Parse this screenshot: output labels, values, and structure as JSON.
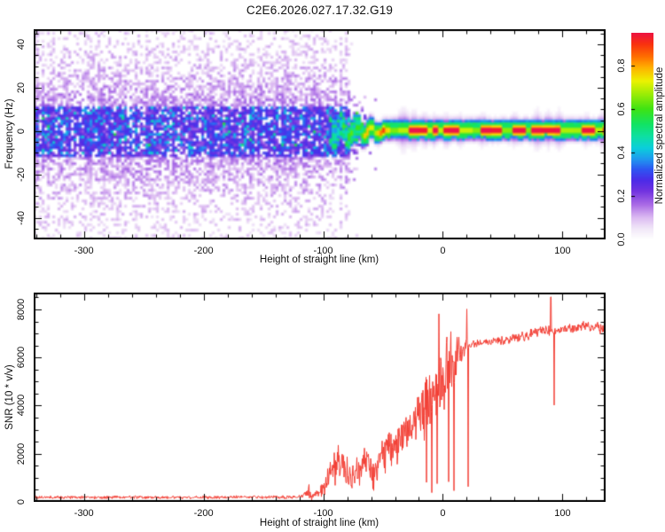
{
  "figure": {
    "background": "#ffffff",
    "frame_color": "#000000"
  },
  "chart_data": [
    {
      "type": "heatmap",
      "title": "C2E6.2026.027.17.32.G19",
      "xlabel": "Height of straight line (km)",
      "ylabel": "Frequency (Hz)",
      "xlim": [
        -342,
        136
      ],
      "ylim": [
        -50,
        47
      ],
      "xticks": {
        "labels": [
          "-300",
          "-200",
          "-100",
          "0",
          "100"
        ],
        "values": [
          -300,
          -200,
          -100,
          0,
          100
        ],
        "minor_step": 20
      },
      "yticks": {
        "labels": [
          "-40",
          "-20",
          "0",
          "20",
          "40"
        ],
        "values": [
          -40,
          -20,
          0,
          20,
          40
        ],
        "minor_step": 5
      },
      "colorbar": {
        "label": "Normalized spectral amplitude",
        "ticks": {
          "labels": [
            "0.0",
            "0.2",
            "0.4",
            "0.6",
            "0.8"
          ],
          "values": [
            0.0,
            0.2,
            0.4,
            0.6,
            0.8
          ]
        },
        "range": [
          0,
          0.95
        ]
      },
      "colormap_stops": [
        [
          0.0,
          "#ffffff"
        ],
        [
          0.05,
          "#f1e6f8"
        ],
        [
          0.1,
          "#dcbaf2"
        ],
        [
          0.16,
          "#a96ae6"
        ],
        [
          0.22,
          "#7334e0"
        ],
        [
          0.27,
          "#4d2be8"
        ],
        [
          0.32,
          "#2f55f2"
        ],
        [
          0.37,
          "#1f9bef"
        ],
        [
          0.42,
          "#0bcfdc"
        ],
        [
          0.47,
          "#0edfa6"
        ],
        [
          0.53,
          "#12e464"
        ],
        [
          0.6,
          "#3fe314"
        ],
        [
          0.67,
          "#9ded06"
        ],
        [
          0.73,
          "#edf202"
        ],
        [
          0.79,
          "#ffb300"
        ],
        [
          0.84,
          "#ff7100"
        ],
        [
          0.9,
          "#f93110"
        ],
        [
          0.95,
          "#ee1441"
        ],
        [
          1.0,
          "#e8135f"
        ]
      ],
      "features": {
        "broadband_noise": {
          "x_full_until": -88,
          "x_mid_until": -74,
          "x_end": -52,
          "mid_density": 0.45,
          "freq_sigma": 30,
          "center_band_halfwidth_hz": 12,
          "description": "speckled purple noise across ±50 Hz, densest (blue/violet with cyan specks) within ±12 Hz of 0; fades out between -88 and -52 km"
        },
        "signal": {
          "x_start": -101,
          "steady_from": -48,
          "center_freq_hz": 0.5,
          "wiggle_max_hz": 4.3,
          "red_dash_fraction": 0.6,
          "trace": [
            [
              -100,
              -2,
              0.35
            ],
            [
              -90,
              -4,
              0.5
            ],
            [
              -80,
              3,
              0.55
            ],
            [
              -70,
              -2,
              0.62
            ],
            [
              -60,
              3,
              0.7
            ],
            [
              -52,
              1,
              0.8
            ],
            [
              -45,
              0.5,
              0.95
            ],
            [
              0,
              0.5,
              0.95
            ],
            [
              136,
              0.5,
              0.95
            ]
          ],
          "description": "narrow line at ~0 Hz: wiggling green/cyan blobs from -100 to -48 km, then steady band with red/crimson dashed core, yellow-green edges, cyan rim and purple halo to the right edge"
        },
        "halo_bumps": [
          {
            "x": -33,
            "a": 2.2,
            "s": 4
          },
          {
            "x": -24,
            "a": 1.6,
            "s": 3
          },
          {
            "x": -15,
            "a": 1.2,
            "s": 2.5
          },
          {
            "x": -7,
            "a": 1.0,
            "s": 2
          },
          {
            "x": 3,
            "a": 1.1,
            "s": 2.5
          },
          {
            "x": 14,
            "a": 0.9,
            "s": 2
          },
          {
            "x": 33,
            "a": 0.8,
            "s": 3
          },
          {
            "x": 60,
            "a": 0.9,
            "s": 2.5
          },
          {
            "x": 79,
            "a": 1.8,
            "s": 3
          },
          {
            "x": 88,
            "a": 1.4,
            "s": 2.5
          },
          {
            "x": 97,
            "a": 1.7,
            "s": 3
          },
          {
            "x": 120,
            "a": 0.8,
            "s": 2
          },
          {
            "x": 133,
            "a": 1.5,
            "s": 2
          }
        ]
      }
    },
    {
      "type": "line",
      "xlabel": "Height of straight line (km)",
      "ylabel": "SNR (10 * v/v)",
      "xlim": [
        -342,
        136
      ],
      "ylim": [
        0,
        8700
      ],
      "xticks": {
        "labels": [
          "-300",
          "-200",
          "-100",
          "0",
          "100"
        ],
        "values": [
          -300,
          -200,
          -100,
          0,
          100
        ],
        "minor_step": 20
      },
      "yticks": {
        "labels": [
          "0",
          "2000",
          "4000",
          "6000",
          "8000"
        ],
        "values": [
          0,
          2000,
          4000,
          6000,
          8000
        ],
        "minor_step": 500
      },
      "series": [
        {
          "name": "SNR",
          "color": "#f23c32",
          "envelope": [
            [
              -342,
              190,
              70
            ],
            [
              -300,
              185,
              70
            ],
            [
              -260,
              195,
              80
            ],
            [
              -220,
              185,
              75
            ],
            [
              -180,
              195,
              80
            ],
            [
              -150,
              190,
              80
            ],
            [
              -130,
              200,
              90
            ],
            [
              -118,
              220,
              120
            ],
            [
              -112,
              320,
              350
            ],
            [
              -108,
              260,
              150
            ],
            [
              -103,
              420,
              280
            ],
            [
              -99,
              700,
              500
            ],
            [
              -95,
              1100,
              800
            ],
            [
              -90,
              1500,
              1000
            ],
            [
              -86,
              1700,
              900
            ],
            [
              -82,
              1500,
              900
            ],
            [
              -78,
              1100,
              700
            ],
            [
              -74,
              900,
              600
            ],
            [
              -70,
              1400,
              900
            ],
            [
              -66,
              1800,
              800
            ],
            [
              -62,
              1500,
              800
            ],
            [
              -58,
              1100,
              700
            ],
            [
              -55,
              1600,
              900
            ],
            [
              -52,
              2100,
              800
            ],
            [
              -49,
              1800,
              900
            ],
            [
              -46,
              2300,
              900
            ],
            [
              -43,
              2100,
              1000
            ],
            [
              -40,
              2600,
              1000
            ],
            [
              -37,
              2400,
              1100
            ],
            [
              -34,
              2900,
              1000
            ],
            [
              -31,
              2700,
              1100
            ],
            [
              -28,
              3100,
              1000
            ],
            [
              -25,
              3400,
              1200
            ],
            [
              -22,
              3100,
              1300
            ],
            [
              -19,
              3600,
              1400
            ],
            [
              -16,
              3900,
              1400
            ],
            [
              -13,
              4100,
              1500
            ],
            [
              -10,
              4400,
              1500
            ],
            [
              -7,
              4100,
              1600
            ],
            [
              -4,
              4600,
              1700
            ],
            [
              -1,
              5000,
              1800
            ],
            [
              2,
              5300,
              1700
            ],
            [
              5,
              5000,
              1800
            ],
            [
              8,
              5600,
              1500
            ],
            [
              11,
              6000,
              1100
            ],
            [
              14,
              6300,
              800
            ],
            [
              17,
              6400,
              500
            ],
            [
              20,
              6500,
              350
            ],
            [
              25,
              6550,
              250
            ],
            [
              30,
              6600,
              220
            ],
            [
              40,
              6650,
              200
            ],
            [
              50,
              6700,
              200
            ],
            [
              60,
              6800,
              220
            ],
            [
              70,
              6900,
              250
            ],
            [
              78,
              7050,
              300
            ],
            [
              84,
              7100,
              280
            ],
            [
              90,
              7100,
              300
            ],
            [
              96,
              7150,
              250
            ],
            [
              104,
              7200,
              220
            ],
            [
              112,
              7250,
              220
            ],
            [
              120,
              7300,
              230
            ],
            [
              128,
              7250,
              260
            ],
            [
              136,
              7200,
              260
            ]
          ],
          "events": [
            {
              "x": -112,
              "value": 720
            },
            {
              "x": 90.2,
              "value": 8520
            },
            {
              "x": 92.9,
              "value": 4020
            }
          ]
        }
      ]
    }
  ]
}
